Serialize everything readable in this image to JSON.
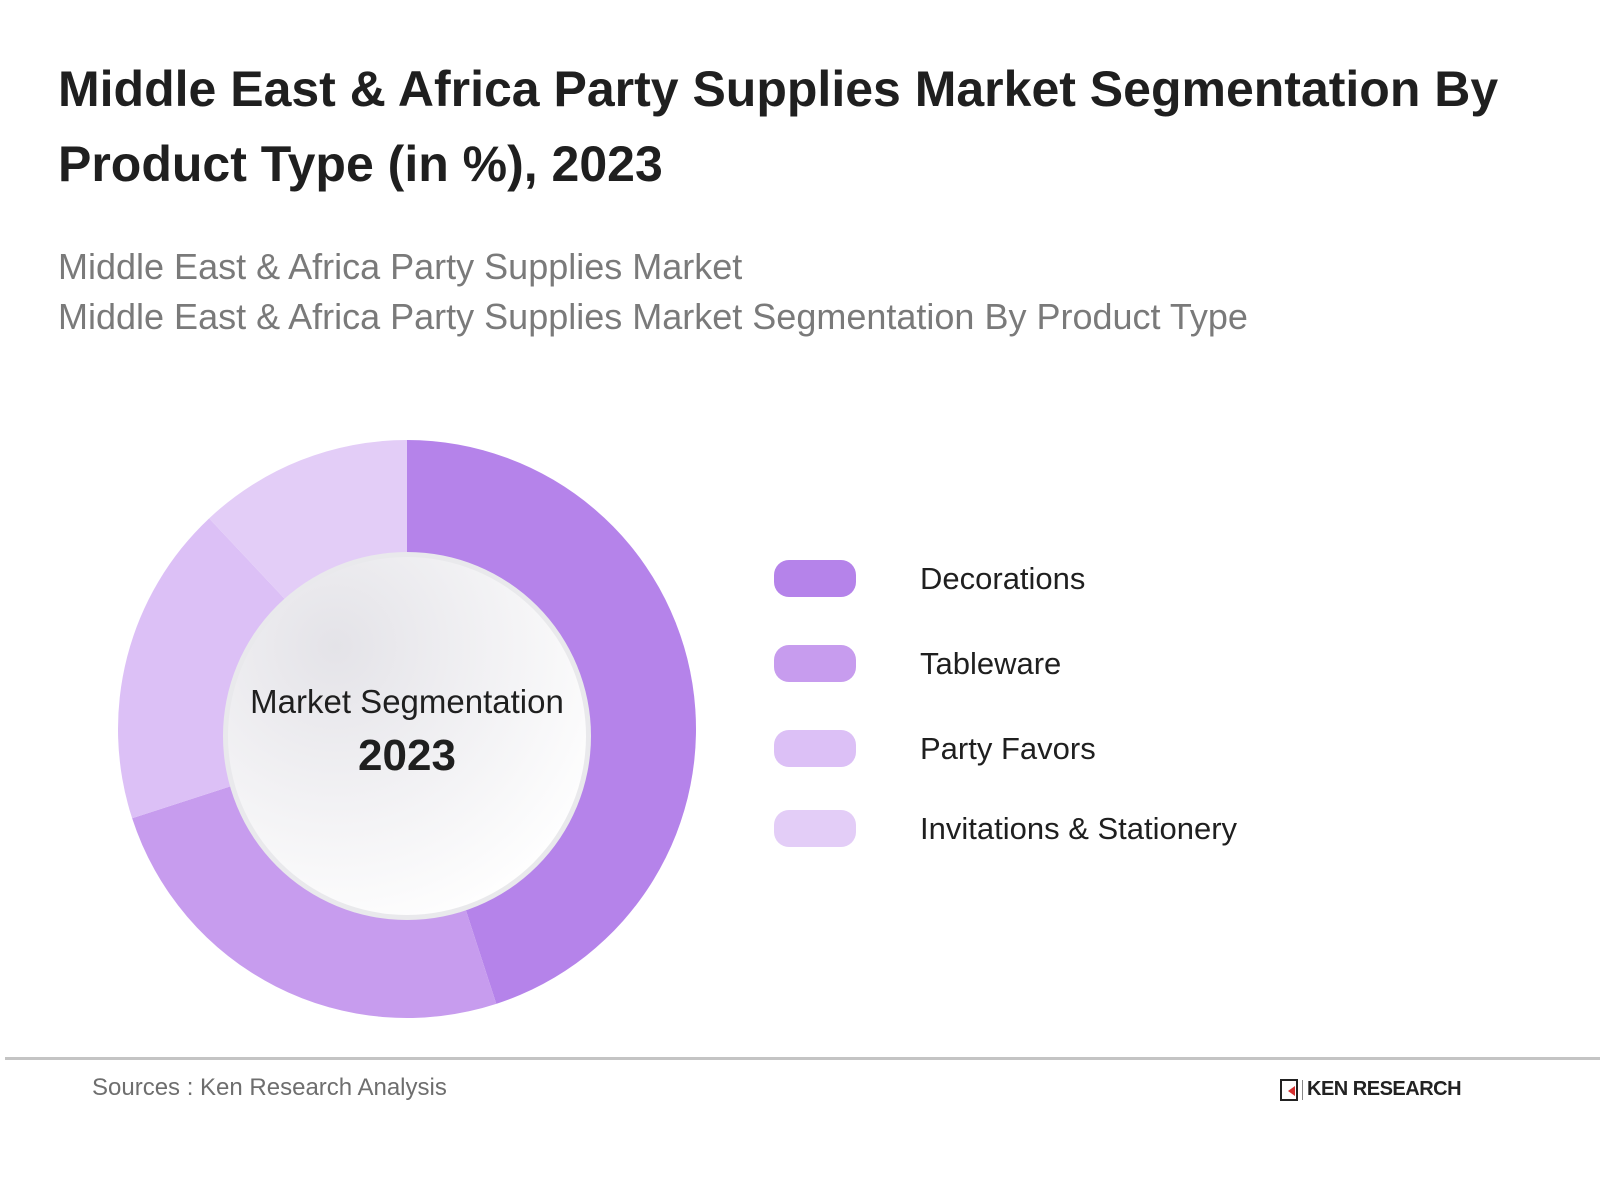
{
  "header": {
    "title": "Middle East & Africa Party Supplies Market Segmentation By Product Type (in %), 2023",
    "subtitle_line1": "Middle East & Africa Party Supplies Market",
    "subtitle_line2": "Middle East & Africa Party Supplies Market Segmentation By Product Type"
  },
  "center": {
    "label": "Market Segmentation",
    "year": "2023"
  },
  "legend": [
    {
      "label": "Decorations",
      "color": "#b583ea"
    },
    {
      "label": "Tableware",
      "color": "#c79cee"
    },
    {
      "label": "Party Favors",
      "color": "#dcc0f6"
    },
    {
      "label": "Invitations & Stationery",
      "color": "#e3cdf7"
    }
  ],
  "footer": {
    "source": "Sources : Ken Research Analysis",
    "logo_text": "KEN RESEARCH"
  },
  "chart_data": {
    "type": "pie",
    "subtype": "donut",
    "title": "Middle East & Africa Party Supplies Market Segmentation By Product Type (in %), 2023",
    "categories": [
      "Decorations",
      "Tableware",
      "Party Favors",
      "Invitations & Stationery"
    ],
    "values": [
      45,
      25,
      18,
      12
    ],
    "colors": [
      "#b583ea",
      "#c79cee",
      "#dcc0f6",
      "#e3cdf7"
    ],
    "center_text": [
      "Market Segmentation",
      "2023"
    ],
    "legend_position": "right",
    "unit": "%"
  }
}
